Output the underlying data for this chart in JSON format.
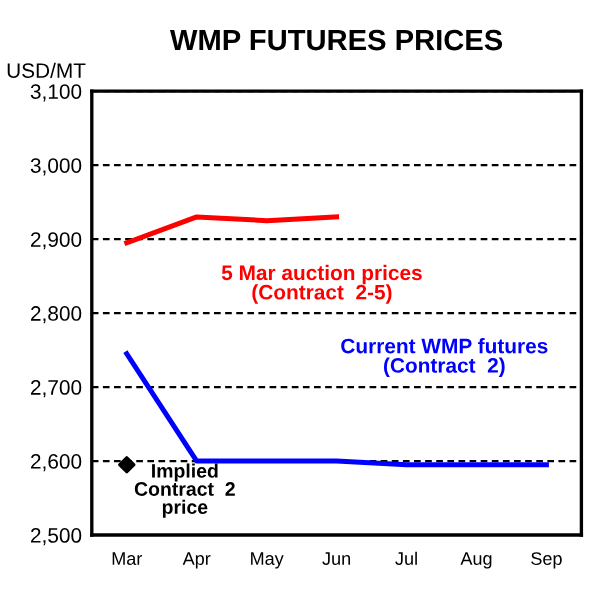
{
  "chart_data": {
    "type": "line",
    "title": "WMP FUTURES PRICES",
    "ylabel": "USD/MT",
    "categories": [
      "Mar",
      "Apr",
      "May",
      "Jun",
      "Jul",
      "Aug",
      "Sep"
    ],
    "series": [
      {
        "name": "5 Mar auction prices\n(Contract  2-5)",
        "type": "line",
        "color": "#ff0000",
        "values": [
          2895,
          2930,
          2925,
          2930,
          null,
          null,
          null
        ]
      },
      {
        "name": "Current WMP futures\n(Contract  2)",
        "type": "line",
        "color": "#0000ff",
        "values": [
          2745,
          2600,
          2600,
          2600,
          2595,
          2595,
          2595
        ]
      },
      {
        "name": "Implied\nContract  2\nprice",
        "type": "scatter",
        "color": "#000000",
        "marker": "diamond",
        "x": [
          "Mar"
        ],
        "values": [
          2595
        ]
      }
    ],
    "ylim": [
      2500,
      3100
    ],
    "yticks": [
      {
        "value": 2500,
        "label": "2,500"
      },
      {
        "value": 2600,
        "label": "2,600"
      },
      {
        "value": 2700,
        "label": "2,700"
      },
      {
        "value": 2800,
        "label": "2,800"
      },
      {
        "value": 2900,
        "label": "2,900"
      },
      {
        "value": 3000,
        "label": "3,000"
      },
      {
        "value": 3100,
        "label": "3,100"
      }
    ],
    "grid": "y",
    "legend": false
  }
}
